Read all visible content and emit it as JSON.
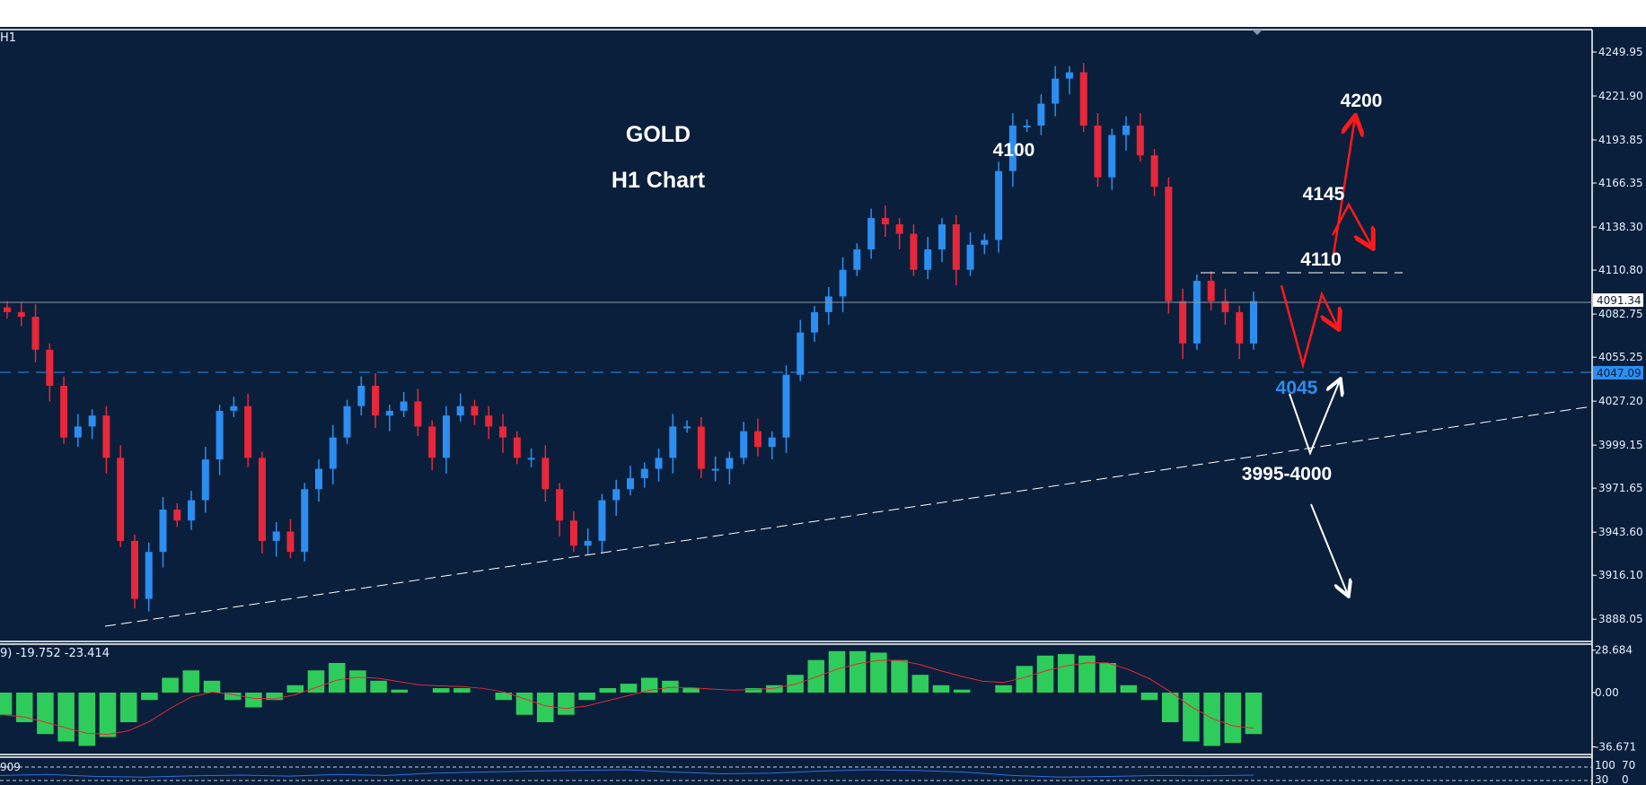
{
  "symbol_timeframe": "H1",
  "colors": {
    "background": "#0a1f3b",
    "bull": "#2b8ef0",
    "bear": "#e8273a",
    "macd_hist": "#2ecc5a",
    "signal": "#e8273a",
    "rsi": "#2f6fe8",
    "support_line": "#2b8ef0",
    "annotation_red": "#ff1a1a"
  },
  "annotations": {
    "title": "GOLD",
    "subtitle": "H1 Chart",
    "level_4100": "4100",
    "level_4200": "4200",
    "level_4145": "4145",
    "level_4110": "4110",
    "level_4045": "4045",
    "level_3995_4000": "3995-4000"
  },
  "chart_data": [
    {
      "type": "candlestick",
      "title": "GOLD",
      "subtitle": "H1 Chart",
      "ylim": [
        3880,
        4265
      ],
      "yticks": [
        "4249.95",
        "4221.90",
        "4193.85",
        "4166.35",
        "4138.30",
        "4110.80",
        "4082.75",
        "4055.25",
        "4027.20",
        "3999.15",
        "3971.65",
        "3943.60",
        "3916.10",
        "3888.05"
      ],
      "current_price": "4091.34",
      "support_price": "4047.09",
      "closes": [
        4084,
        4081,
        4060,
        4037,
        4004,
        4011,
        4018,
        3991,
        3938,
        3901,
        3931,
        3958,
        3951,
        3964,
        3990,
        4021,
        4024,
        3991,
        3938,
        3944,
        3931,
        3971,
        3984,
        4004,
        4024,
        4037,
        4018,
        4021,
        4027,
        4011,
        3991,
        4018,
        4024,
        4018,
        4011,
        4004,
        3991,
        3991,
        3971,
        3951,
        3935,
        3938,
        3964,
        3971,
        3978,
        3984,
        3991,
        4011,
        4011,
        3984,
        3984,
        3991,
        4008,
        3998,
        4004,
        4044,
        4071,
        4084,
        4094,
        4111,
        4124,
        4144,
        4140,
        4134,
        4111,
        4124,
        4140,
        4111,
        4127,
        4130,
        4174,
        4203,
        4203,
        4217,
        4233,
        4237,
        4203,
        4170,
        4197,
        4203,
        4184,
        4164,
        4091,
        4064,
        4104,
        4091,
        4084,
        4064,
        4091
      ],
      "grid": false
    },
    {
      "type": "bar",
      "indicator": "MACD",
      "label": "9) -19.752 -23.414",
      "ylim": [
        -36.671,
        28.684
      ],
      "yticks": [
        "28.684",
        "0.00",
        "-36.671"
      ],
      "histogram": [
        -15,
        -20,
        -28,
        -33,
        -36,
        -30,
        -20,
        -5,
        10,
        15,
        8,
        -5,
        -10,
        -5,
        5,
        15,
        20,
        15,
        8,
        2,
        0,
        3,
        3,
        0,
        -5,
        -15,
        -20,
        -15,
        -5,
        3,
        6,
        10,
        8,
        3,
        0,
        0,
        3,
        5,
        12,
        22,
        28,
        28,
        27,
        22,
        12,
        5,
        2,
        0,
        5,
        18,
        25,
        26,
        25,
        20,
        5,
        -5,
        -20,
        -33,
        -36,
        -34,
        -28
      ]
    },
    {
      "type": "line",
      "indicator": "RSI",
      "label": "909",
      "yticks": [
        "100",
        "70",
        "30",
        "0"
      ],
      "values": [
        45,
        48,
        42,
        40,
        44,
        46,
        43,
        48,
        45,
        52,
        55,
        58,
        60,
        62,
        55,
        50,
        52,
        58,
        62,
        60,
        55,
        45,
        40,
        42,
        45,
        44,
        46
      ]
    }
  ]
}
